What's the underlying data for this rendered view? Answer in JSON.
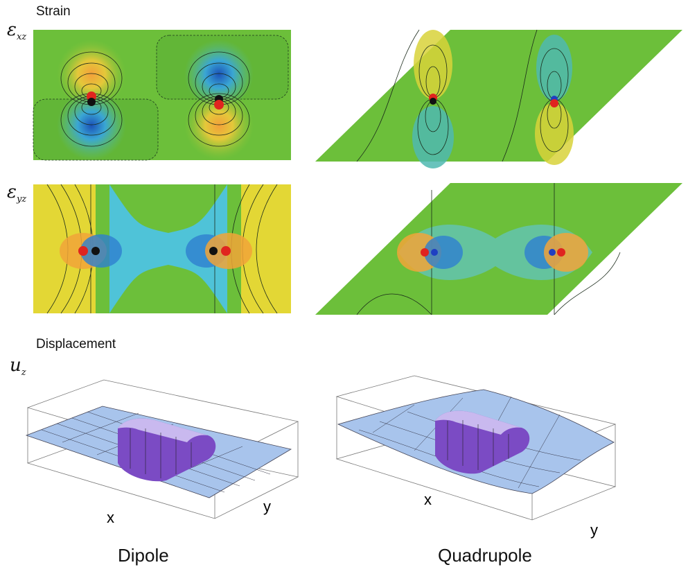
{
  "sections": {
    "strain": "Strain",
    "displacement": "Displacement"
  },
  "symbols": {
    "exz": {
      "base": "ε",
      "sub": "xz"
    },
    "eyz": {
      "base": "ε",
      "sub": "yz"
    },
    "uz": {
      "base": "u",
      "sub": "z"
    }
  },
  "surface_axes": {
    "dipole": {
      "x_label": "x",
      "y_label": "y"
    },
    "quadrupole": {
      "x_label": "x",
      "y_label": "y"
    }
  },
  "captions": {
    "dipole": "Dipole",
    "quadrupole": "Quadrupole"
  },
  "palette": {
    "field_green": "#6cbf3a",
    "field_yellow": "#e3d735",
    "field_cyan": "#4fc3d8",
    "core_red": "#e0241f",
    "core_blue": "#1f3fc2",
    "surface_blue": "#a8c4ec",
    "surface_purple": "#7b4bc4"
  }
}
